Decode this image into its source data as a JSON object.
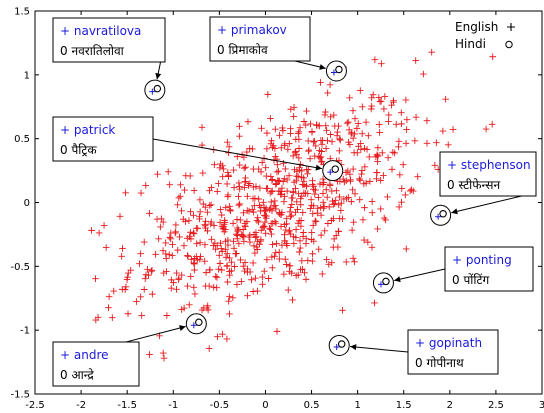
{
  "chart_data": {
    "type": "scatter",
    "title": "",
    "xlabel": "",
    "ylabel": "",
    "xlim": [
      -2.5,
      3
    ],
    "ylim": [
      -1.5,
      1.5
    ],
    "x_ticks": [
      "-2.5",
      "-2",
      "-1.5",
      "-1",
      "-0.5",
      "0",
      "0.5",
      "1",
      "1.5",
      "2",
      "2.5",
      "3"
    ],
    "x_tick_values": [
      -2.5,
      -2,
      -1.5,
      -1,
      -0.5,
      0,
      0.5,
      1,
      1.5,
      2,
      2.5,
      3
    ],
    "y_ticks": [
      "-1.5",
      "-1",
      "-0.5",
      "0",
      "0.5",
      "1",
      "1.5"
    ],
    "y_tick_values": [
      -1.5,
      -1,
      -0.5,
      0,
      0.5,
      1,
      1.5
    ],
    "grid": false,
    "legend": {
      "placement": "top-right",
      "entries": [
        {
          "label": "English",
          "marker": "+",
          "color": "#e8191c"
        },
        {
          "label": "Hindi",
          "marker": "o",
          "color": "#000000"
        }
      ]
    },
    "colors": {
      "english": "#e8191c",
      "hindi": "#000000",
      "callout_english": "#1a1adc"
    },
    "series": [
      {
        "name": "English",
        "marker": "+",
        "points": []
      },
      {
        "name": "Hindi",
        "marker": "o",
        "points": []
      }
    ],
    "highlighted_pairs": [
      {
        "english": "navratilova",
        "hindi": "नवरातिलोवा",
        "x": -1.2,
        "y": 0.88
      },
      {
        "english": "primakov",
        "hindi": "प्रिमाकोव",
        "x": 0.77,
        "y": 1.03
      },
      {
        "english": "patrick",
        "hindi": "पैट्रिक",
        "x": 0.73,
        "y": 0.25
      },
      {
        "english": "stephenson",
        "hindi": "स्टीफेन्सन",
        "x": 1.9,
        "y": -0.1
      },
      {
        "english": "ponting",
        "hindi": "पोंटिंग",
        "x": 1.28,
        "y": -0.63
      },
      {
        "english": "gopinath",
        "hindi": "गोपीनाथ",
        "x": 0.8,
        "y": -1.12
      },
      {
        "english": "andre",
        "hindi": "आन्द्रे",
        "x": -0.75,
        "y": -0.95
      }
    ]
  }
}
